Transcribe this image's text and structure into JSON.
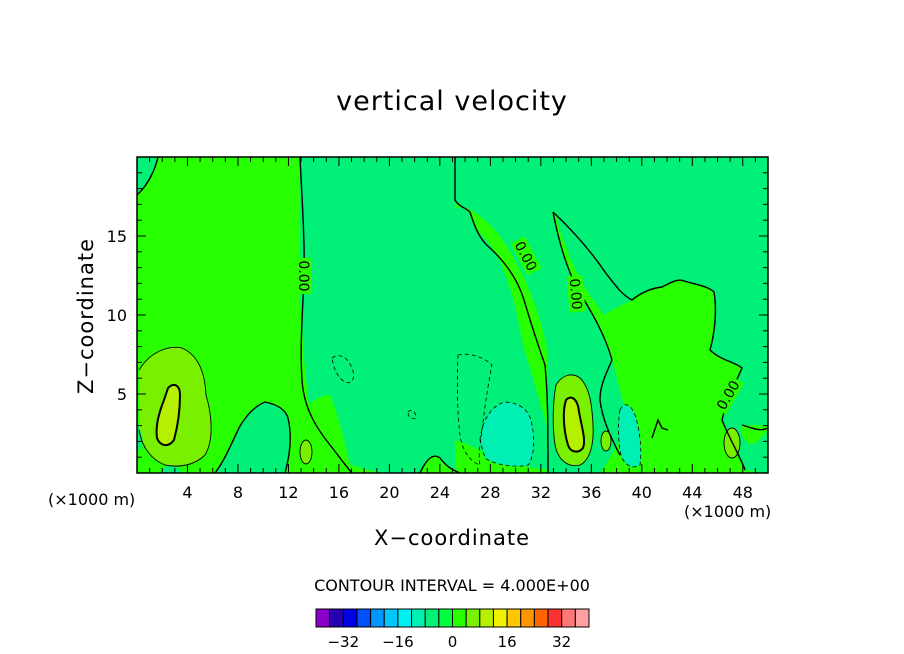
{
  "chart_data": {
    "type": "heatmap",
    "title": "vertical velocity",
    "xlabel": "X−coordinate",
    "ylabel": "Z−coordinate",
    "x_unit_label": "(×1000 m)",
    "xlim": [
      0,
      50
    ],
    "ylim": [
      0,
      20
    ],
    "x_ticks": [
      4,
      8,
      12,
      16,
      20,
      24,
      28,
      32,
      36,
      40,
      44,
      48
    ],
    "y_ticks": [
      5,
      10,
      15
    ],
    "contour_interval_text": "CONTOUR INTERVAL = 4.000E+00",
    "contour_labels": [
      "0.00",
      "0.00",
      "0.00",
      "0.00"
    ],
    "colorbar": {
      "levels": [
        -36,
        -32,
        -28,
        -24,
        -20,
        -16,
        -12,
        -8,
        -4,
        0,
        4,
        8,
        12,
        16,
        20,
        24,
        28,
        32,
        36
      ],
      "tick_labels": [
        "−32",
        "−16",
        "0",
        "16",
        "32"
      ],
      "tick_values": [
        -32,
        -16,
        0,
        16,
        32
      ],
      "colors": [
        "#8a00c8",
        "#2800b4",
        "#0000e6",
        "#0050ff",
        "#0096ff",
        "#00c8ff",
        "#00f0f0",
        "#00f0b4",
        "#00f078",
        "#00ff3c",
        "#28ff00",
        "#78f000",
        "#b4f000",
        "#f0f000",
        "#ffc800",
        "#ff9600",
        "#ff6400",
        "#ff3232",
        "#ff7878",
        "#ffa0a0"
      ]
    },
    "colors": {
      "background_field": "#28ff00",
      "weak_downdraft": "#00f078",
      "weak_updraft": "#78f000",
      "strong_updraft": "#b4f000"
    }
  }
}
